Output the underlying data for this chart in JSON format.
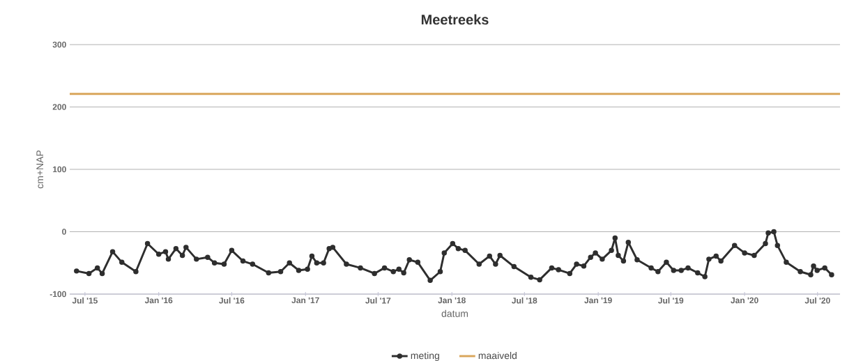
{
  "chart_data": {
    "type": "line",
    "title": "Meetreeks",
    "xlabel": "datum",
    "ylabel": "cm+NAP",
    "xlim": [
      "2015-05-24",
      "2020-08-26"
    ],
    "ylim": [
      -100,
      300
    ],
    "yticks": [
      -100,
      0,
      100,
      200,
      300
    ],
    "xticks": [
      {
        "value": "2015-07-01",
        "label": "Jul '15"
      },
      {
        "value": "2016-01-01",
        "label": "Jan '16"
      },
      {
        "value": "2016-07-01",
        "label": "Jul '16"
      },
      {
        "value": "2017-01-01",
        "label": "Jan '17"
      },
      {
        "value": "2017-07-01",
        "label": "Jul '17"
      },
      {
        "value": "2018-01-01",
        "label": "Jan '18"
      },
      {
        "value": "2018-07-01",
        "label": "Jul '18"
      },
      {
        "value": "2019-01-01",
        "label": "Jan '19"
      },
      {
        "value": "2019-07-01",
        "label": "Jul '19"
      },
      {
        "value": "2020-01-01",
        "label": "Jan '20"
      },
      {
        "value": "2020-07-01",
        "label": "Jul '20"
      }
    ],
    "grid": "y",
    "legend": "bottom",
    "series": [
      {
        "name": "meting",
        "color": "#2e2e2e",
        "marker": "circle",
        "x": [
          "2015-06-10",
          "2015-07-11",
          "2015-08-01",
          "2015-08-13",
          "2015-09-08",
          "2015-10-01",
          "2015-11-05",
          "2015-12-04",
          "2016-01-01",
          "2016-01-18",
          "2016-01-25",
          "2016-02-13",
          "2016-02-29",
          "2016-03-09",
          "2016-04-04",
          "2016-05-02",
          "2016-05-19",
          "2016-06-12",
          "2016-07-01",
          "2016-07-29",
          "2016-08-22",
          "2016-10-01",
          "2016-10-31",
          "2016-11-22",
          "2016-12-15",
          "2017-01-06",
          "2017-01-17",
          "2017-01-29",
          "2017-02-15",
          "2017-03-01",
          "2017-03-10",
          "2017-04-13",
          "2017-05-18",
          "2017-06-22",
          "2017-07-17",
          "2017-08-08",
          "2017-08-22",
          "2017-09-03",
          "2017-09-17",
          "2017-10-08",
          "2017-11-08",
          "2017-12-03",
          "2017-12-13",
          "2018-01-03",
          "2018-01-17",
          "2018-02-03",
          "2018-03-10",
          "2018-04-05",
          "2018-04-20",
          "2018-05-01",
          "2018-06-05",
          "2018-07-17",
          "2018-08-08",
          "2018-09-07",
          "2018-09-24",
          "2018-10-22",
          "2018-11-08",
          "2018-11-26",
          "2018-12-13",
          "2018-12-25",
          "2019-01-11",
          "2019-02-03",
          "2019-02-12",
          "2019-02-20",
          "2019-03-05",
          "2019-03-17",
          "2019-04-08",
          "2019-05-13",
          "2019-05-30",
          "2019-06-20",
          "2019-07-08",
          "2019-07-27",
          "2019-08-13",
          "2019-09-06",
          "2019-09-24",
          "2019-10-04",
          "2019-10-22",
          "2019-11-03",
          "2019-12-07",
          "2020-01-01",
          "2020-01-25",
          "2020-02-22",
          "2020-02-29",
          "2020-03-14",
          "2020-03-23",
          "2020-04-14",
          "2020-05-19",
          "2020-06-14",
          "2020-06-21",
          "2020-06-30",
          "2020-07-19",
          "2020-08-05"
        ],
        "values": [
          -63,
          -67,
          -58,
          -67,
          -32,
          -49,
          -64,
          -19,
          -36,
          -32,
          -44,
          -27,
          -38,
          -25,
          -44,
          -41,
          -50,
          -52,
          -30,
          -47,
          -52,
          -66,
          -64,
          -50,
          -62,
          -60,
          -39,
          -50,
          -50,
          -27,
          -25,
          -52,
          -58,
          -67,
          -58,
          -64,
          -60,
          -66,
          -45,
          -49,
          -78,
          -64,
          -34,
          -19,
          -27,
          -30,
          -52,
          -39,
          -52,
          -38,
          -56,
          -73,
          -77,
          -58,
          -61,
          -67,
          -52,
          -55,
          -41,
          -34,
          -44,
          -30,
          -10,
          -38,
          -47,
          -17,
          -45,
          -58,
          -64,
          -49,
          -62,
          -62,
          -58,
          -66,
          -72,
          -44,
          -39,
          -47,
          -22,
          -34,
          -38,
          -19,
          -2,
          0,
          -22,
          -49,
          -64,
          -69,
          -55,
          -62,
          -58,
          -69
        ]
      },
      {
        "name": "maaiveld",
        "color": "#d9a65b",
        "marker": "none",
        "x": [
          "2015-05-24",
          "2020-08-26"
        ],
        "values": [
          221,
          221
        ]
      }
    ]
  }
}
